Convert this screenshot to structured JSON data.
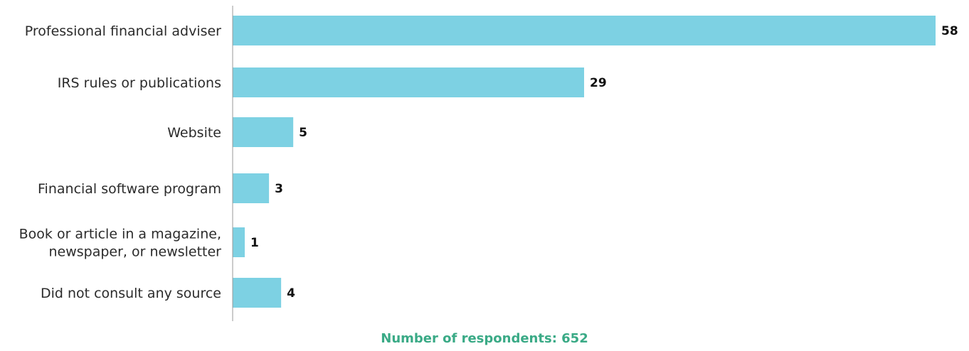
{
  "chart_data": {
    "type": "bar",
    "orientation": "horizontal",
    "categories": [
      [
        "Professional financial adviser"
      ],
      [
        "IRS rules or publications"
      ],
      [
        "Website"
      ],
      [
        "Financial software program"
      ],
      [
        "Book or article in a magazine,",
        "newspaper, or newsletter"
      ],
      [
        "Did not consult any source"
      ]
    ],
    "values": [
      58,
      29,
      5,
      3,
      1,
      4
    ],
    "xlim": [
      0,
      58
    ],
    "grid": false,
    "legend": "none",
    "bar_color": "#7dd1e3",
    "axis_color": "#9a9a9a"
  },
  "footnote": {
    "text": "Number of respondents: 652",
    "color": "#3aaa86"
  }
}
